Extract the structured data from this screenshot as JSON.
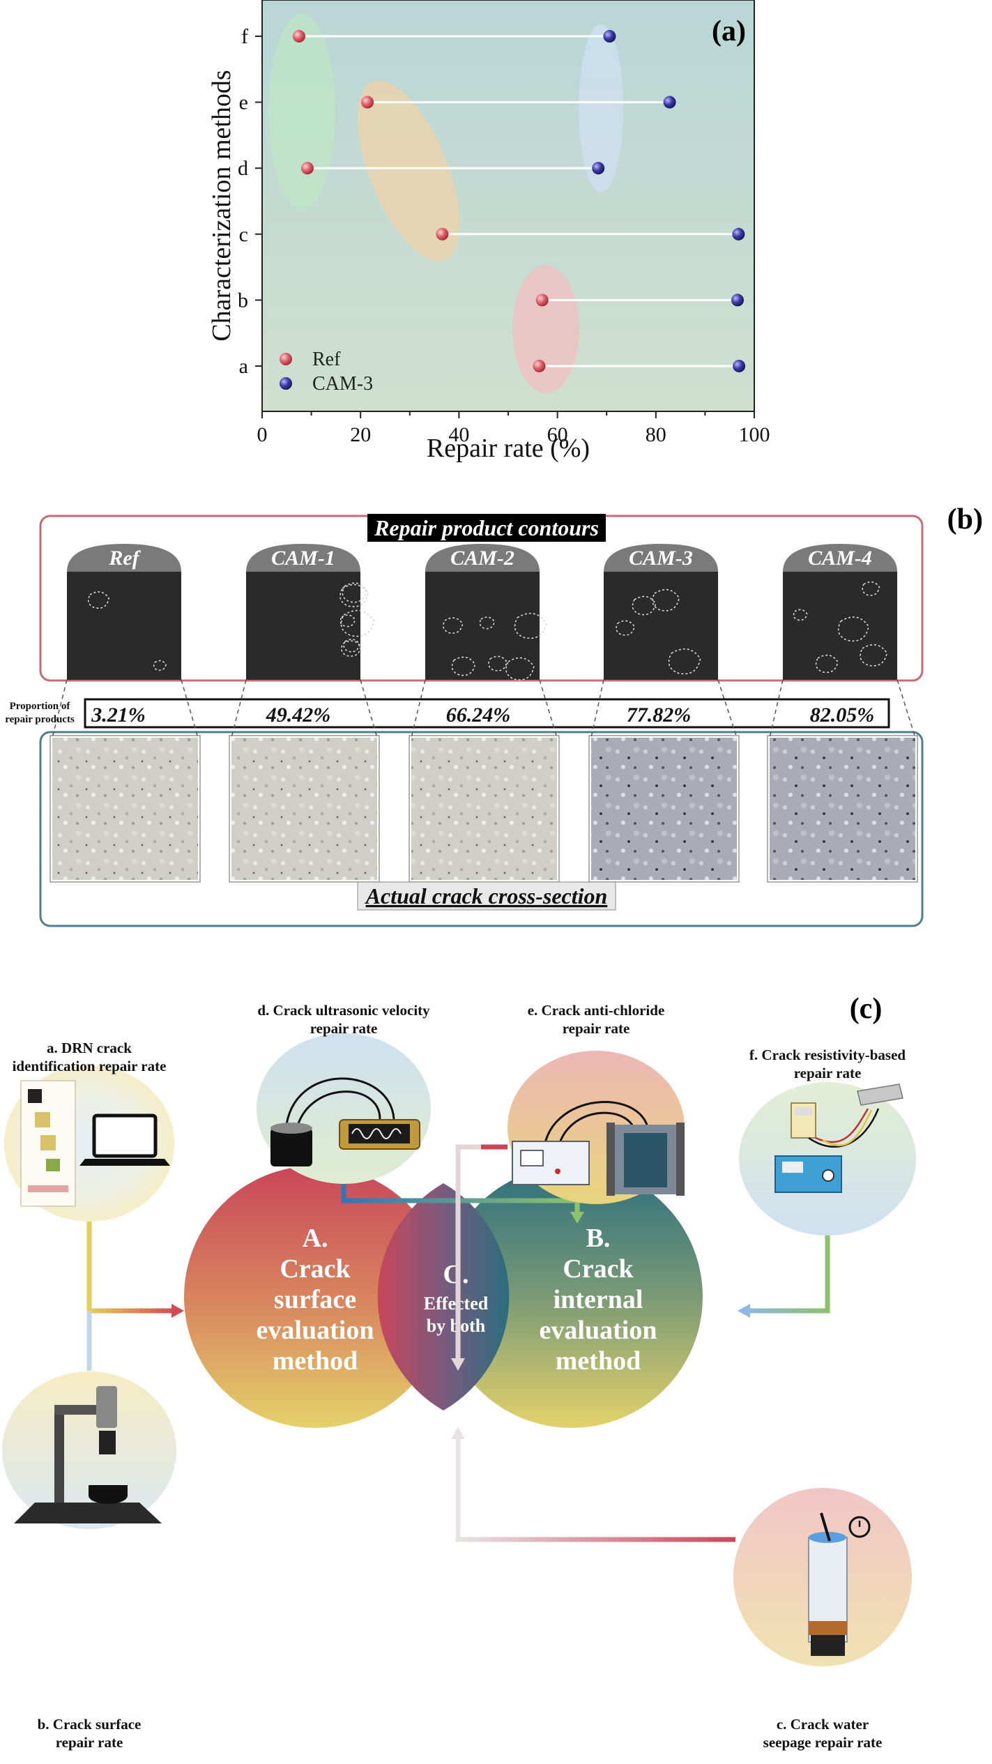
{
  "panel_a": {
    "letter": "(a)",
    "chart_data": {
      "type": "scatter",
      "xlabel": "Repair rate (%)",
      "ylabel": "Characterization methods",
      "xlim": [
        0,
        100
      ],
      "xticks": [
        "0",
        "20",
        "40",
        "60",
        "80",
        "100"
      ],
      "categories": [
        "a",
        "b",
        "c",
        "d",
        "e",
        "f"
      ],
      "series": [
        {
          "name": "Ref",
          "color": "#d9535f",
          "values": [
            56.3,
            56.9,
            36.6,
            9.2,
            21.4,
            7.5
          ]
        },
        {
          "name": "CAM-3",
          "color": "#2f2f8f",
          "values": [
            96.9,
            96.6,
            96.8,
            68.3,
            82.8,
            70.6
          ]
        }
      ],
      "legend_position": "bottom-left",
      "grid": false
    }
  },
  "panel_b": {
    "letter": "(b)",
    "top_banner": "Repair product contours",
    "bottom_banner": "Actual crack cross-section",
    "proportion_label_line1": "Proportion of",
    "proportion_label_line2": "repair products",
    "samples": [
      {
        "name": "Ref",
        "proportion": "3.21%"
      },
      {
        "name": "CAM-1",
        "proportion": "49.42%"
      },
      {
        "name": "CAM-2",
        "proportion": "66.24%"
      },
      {
        "name": "CAM-3",
        "proportion": "77.82%"
      },
      {
        "name": "CAM-4",
        "proportion": "82.05%"
      }
    ]
  },
  "panel_c": {
    "letter": "(c)",
    "circle_a": [
      "A.",
      "Crack",
      "surface",
      "evaluation",
      "method"
    ],
    "circle_b": [
      "B.",
      "Crack",
      "internal",
      "evaluation",
      "method"
    ],
    "overlap": [
      "C.",
      "Effected",
      "by both"
    ],
    "methods": {
      "a": [
        "a. DRN crack",
        "identification repair rate"
      ],
      "b": [
        "b. Crack surface",
        "repair rate"
      ],
      "c": [
        "c. Crack water",
        "seepage repair rate"
      ],
      "d": [
        "d. Crack ultrasonic velocity",
        "repair rate"
      ],
      "e": [
        "e. Crack anti-chloride",
        "repair rate"
      ],
      "f": [
        "f. Crack resistivity-based",
        "repair rate"
      ]
    }
  }
}
